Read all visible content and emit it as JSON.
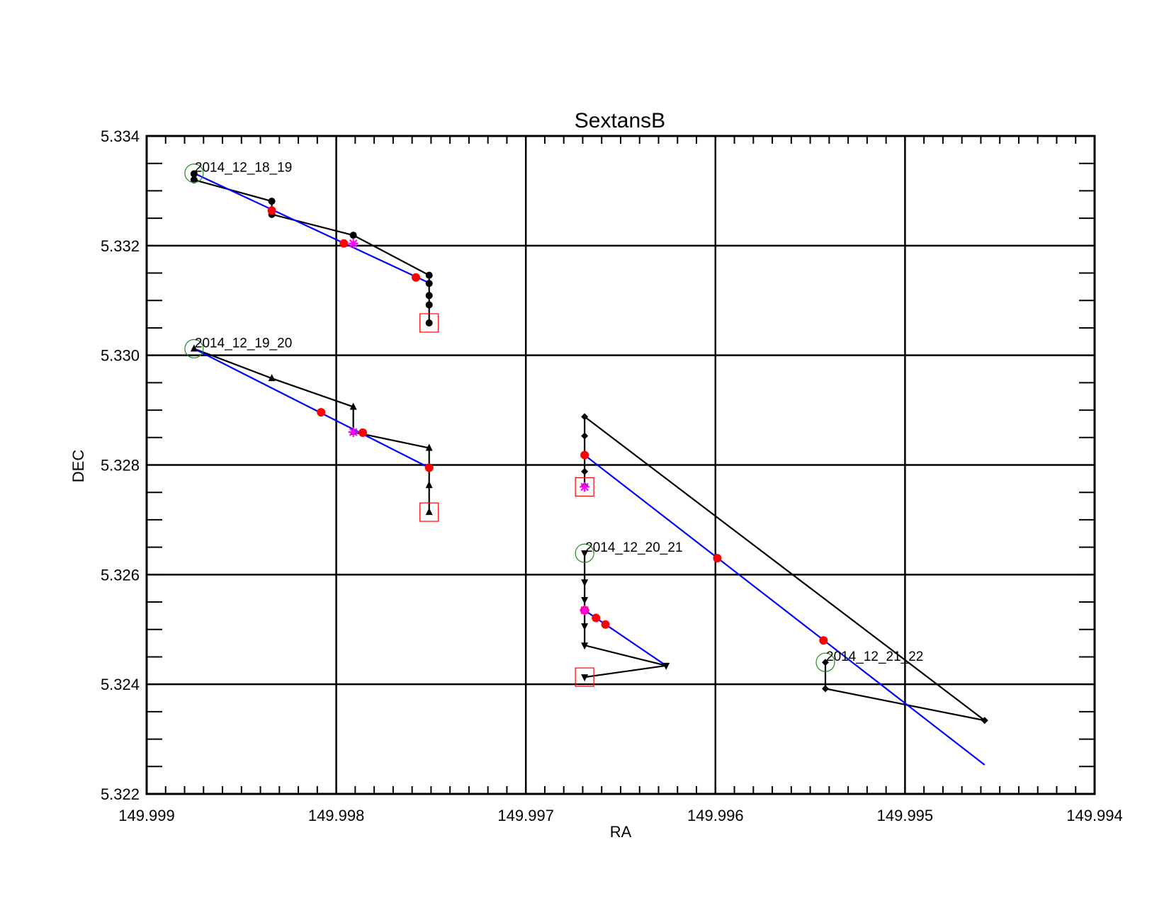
{
  "chart_data": {
    "type": "line",
    "title": "SextansB",
    "xlabel": "RA",
    "ylabel": "DEC",
    "xlim": [
      149.999,
      149.994
    ],
    "ylim": [
      5.322,
      5.334
    ],
    "x_reversed": true,
    "x_ticks": [
      "149.999",
      "149.998",
      "149.997",
      "149.996",
      "149.995",
      "149.994"
    ],
    "y_ticks": [
      "5.322",
      "5.324",
      "5.326",
      "5.328",
      "5.330",
      "5.332",
      "5.334"
    ],
    "x_tick_values": [
      149.999,
      149.998,
      149.997,
      149.996,
      149.995,
      149.994
    ],
    "y_tick_values": [
      5.322,
      5.324,
      5.326,
      5.328,
      5.33,
      5.332,
      5.334
    ],
    "grid": true,
    "colors": {
      "track": "#000000",
      "fit": "#0000ff",
      "fit_point": "#ff0000",
      "mean": "#ff00ff",
      "start_circle": "#228b22",
      "end_box": "#ff0000"
    },
    "series": [
      {
        "name": "2014_12_18_19",
        "marker": "circle",
        "track": [
          {
            "x": 149.99875,
            "y": 5.33331
          },
          {
            "x": 149.99875,
            "y": 5.3332
          },
          {
            "x": 149.99834,
            "y": 5.33281
          },
          {
            "x": 149.99834,
            "y": 5.33257
          },
          {
            "x": 149.99791,
            "y": 5.33219
          },
          {
            "x": 149.99751,
            "y": 5.33146
          },
          {
            "x": 149.99751,
            "y": 5.33131
          },
          {
            "x": 149.99751,
            "y": 5.33109
          },
          {
            "x": 149.99751,
            "y": 5.33092
          },
          {
            "x": 149.99751,
            "y": 5.33059
          }
        ],
        "fit_line": [
          {
            "x": 149.99875,
            "y": 5.33332
          },
          {
            "x": 149.99751,
            "y": 5.33132
          }
        ],
        "fit_points": [
          {
            "x": 149.99834,
            "y": 5.33264
          },
          {
            "x": 149.99796,
            "y": 5.33204
          },
          {
            "x": 149.99758,
            "y": 5.33142
          }
        ],
        "mean": {
          "x": 149.99791,
          "y": 5.33204
        },
        "start_circle": {
          "x": 149.99875,
          "y": 5.33332
        },
        "end_box": {
          "x": 149.99751,
          "y": 5.33059
        }
      },
      {
        "name": "2014_12_19_20",
        "marker": "triangle-up",
        "track": [
          {
            "x": 149.99875,
            "y": 5.33012
          },
          {
            "x": 149.99834,
            "y": 5.32958
          },
          {
            "x": 149.99791,
            "y": 5.32906
          },
          {
            "x": 149.99791,
            "y": 5.3286
          },
          {
            "x": 149.99751,
            "y": 5.32831
          },
          {
            "x": 149.99751,
            "y": 5.32795
          },
          {
            "x": 149.99751,
            "y": 5.32763
          },
          {
            "x": 149.99751,
            "y": 5.32714
          }
        ],
        "fit_line": [
          {
            "x": 149.99875,
            "y": 5.33012
          },
          {
            "x": 149.99751,
            "y": 5.32795
          }
        ],
        "fit_points": [
          {
            "x": 149.99808,
            "y": 5.32896
          },
          {
            "x": 149.99786,
            "y": 5.32859
          },
          {
            "x": 149.99751,
            "y": 5.32795
          }
        ],
        "mean": {
          "x": 149.99791,
          "y": 5.3286
        },
        "start_circle": {
          "x": 149.99875,
          "y": 5.33012
        },
        "end_box": {
          "x": 149.99751,
          "y": 5.32714
        }
      },
      {
        "name": "2014_12_20_21",
        "marker": "triangle-down",
        "track": [
          {
            "x": 149.99669,
            "y": 5.32639
          },
          {
            "x": 149.99669,
            "y": 5.32586
          },
          {
            "x": 149.99669,
            "y": 5.32554
          },
          {
            "x": 149.99669,
            "y": 5.32506
          },
          {
            "x": 149.99669,
            "y": 5.32471
          },
          {
            "x": 149.99626,
            "y": 5.32434
          },
          {
            "x": 149.99669,
            "y": 5.32413
          }
        ],
        "fit_line": [
          {
            "x": 149.99669,
            "y": 5.32535
          },
          {
            "x": 149.99626,
            "y": 5.32434
          }
        ],
        "fit_points": [
          {
            "x": 149.99669,
            "y": 5.32535
          },
          {
            "x": 149.99663,
            "y": 5.32521
          },
          {
            "x": 149.99658,
            "y": 5.32509
          }
        ],
        "mean": {
          "x": 149.99669,
          "y": 5.32535
        },
        "start_circle": {
          "x": 149.99669,
          "y": 5.32639
        },
        "end_box": {
          "x": 149.99669,
          "y": 5.32413
        }
      },
      {
        "name": "2014_12_21_22",
        "marker": "diamond",
        "track": [
          {
            "x": 149.99542,
            "y": 5.3244
          },
          {
            "x": 149.99542,
            "y": 5.32392
          },
          {
            "x": 149.99458,
            "y": 5.32334
          },
          {
            "x": 149.99669,
            "y": 5.32888
          },
          {
            "x": 149.99669,
            "y": 5.32853
          },
          {
            "x": 149.99669,
            "y": 5.32788
          },
          {
            "x": 149.99669,
            "y": 5.32762
          }
        ],
        "fit_line": [
          {
            "x": 149.99669,
            "y": 5.32818
          },
          {
            "x": 149.99458,
            "y": 5.32253
          }
        ],
        "fit_points": [
          {
            "x": 149.99669,
            "y": 5.32818
          },
          {
            "x": 149.99599,
            "y": 5.3263
          },
          {
            "x": 149.99543,
            "y": 5.3248
          }
        ],
        "mean": {
          "x": 149.99669,
          "y": 5.3276
        },
        "start_circle": {
          "x": 149.99542,
          "y": 5.3244
        },
        "end_box": {
          "x": 149.99669,
          "y": 5.3276
        }
      }
    ]
  }
}
